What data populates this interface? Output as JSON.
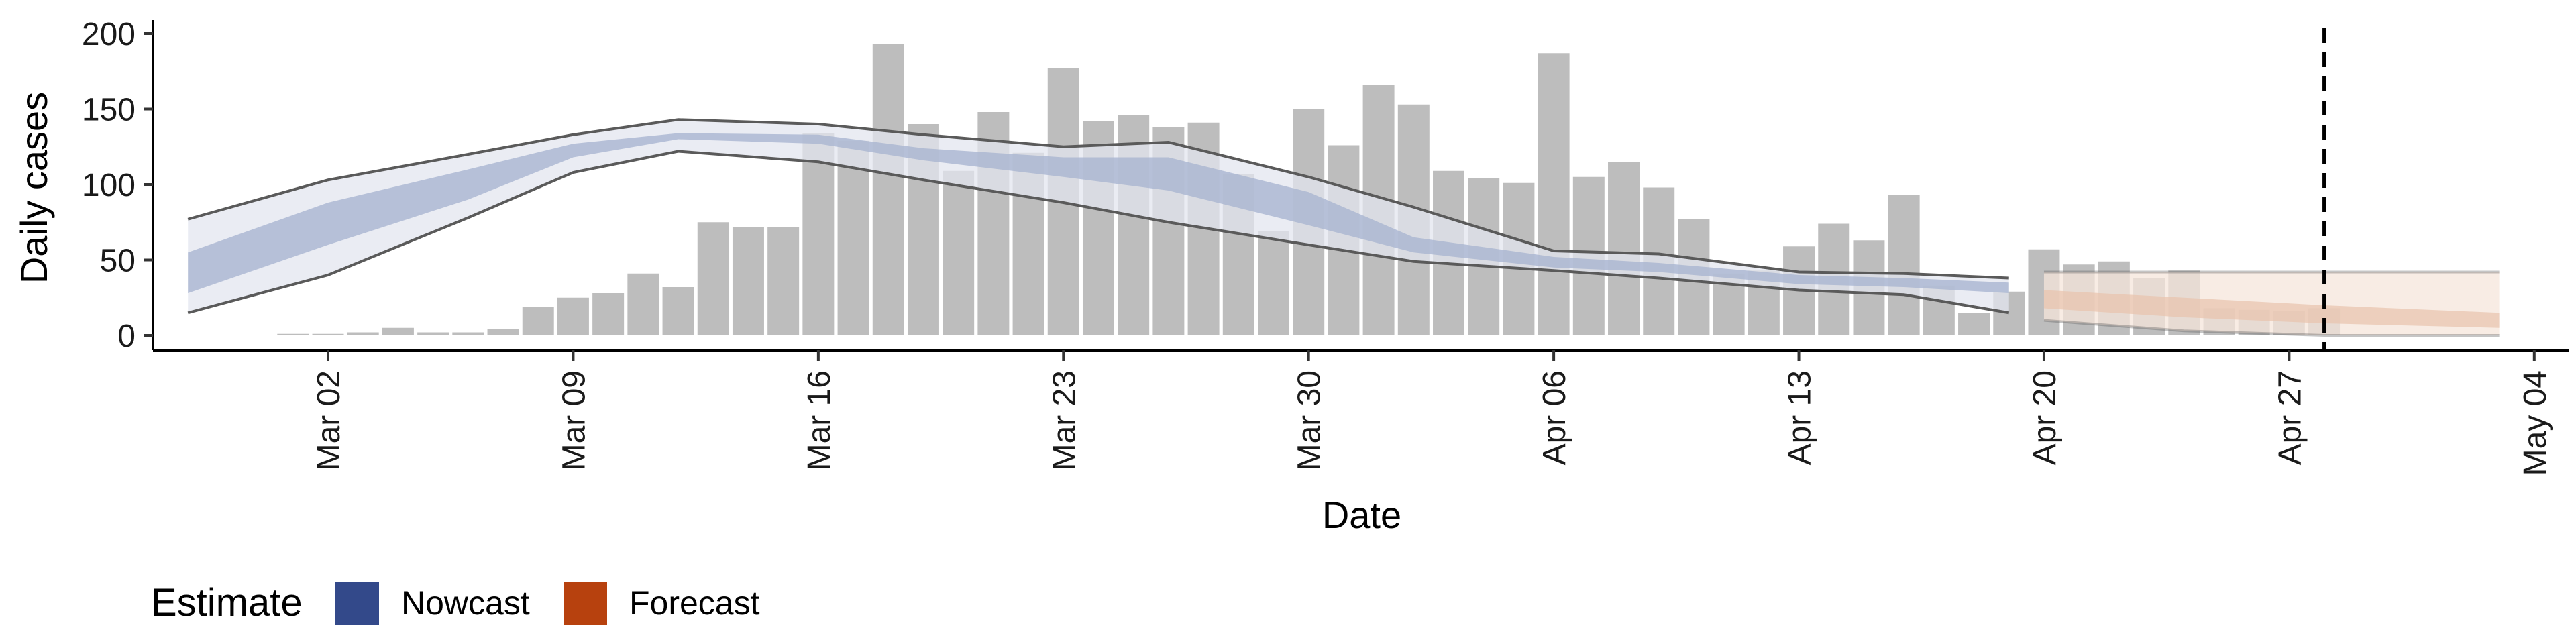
{
  "chart_data": {
    "type": "bar",
    "xlabel": "Date",
    "ylabel": "Daily cases",
    "ylim": [
      0,
      200
    ],
    "y_ticks": [
      0,
      50,
      100,
      150,
      200
    ],
    "xlim": [
      "2020-02-26",
      "2020-05-05"
    ],
    "x_ticks": [
      {
        "date": "2020-03-02",
        "label": "Mar 02"
      },
      {
        "date": "2020-03-09",
        "label": "Mar 09"
      },
      {
        "date": "2020-03-16",
        "label": "Mar 16"
      },
      {
        "date": "2020-03-23",
        "label": "Mar 23"
      },
      {
        "date": "2020-03-30",
        "label": "Mar 30"
      },
      {
        "date": "2020-04-06",
        "label": "Apr 06"
      },
      {
        "date": "2020-04-13",
        "label": "Apr 13"
      },
      {
        "date": "2020-04-20",
        "label": "Apr 20"
      },
      {
        "date": "2020-04-27",
        "label": "Apr 27"
      },
      {
        "date": "2020-05-04",
        "label": "May 04"
      }
    ],
    "forecast_date": "2020-04-28",
    "bars": {
      "dates": [
        "2020-03-01",
        "2020-03-02",
        "2020-03-03",
        "2020-03-04",
        "2020-03-05",
        "2020-03-06",
        "2020-03-07",
        "2020-03-08",
        "2020-03-09",
        "2020-03-10",
        "2020-03-11",
        "2020-03-12",
        "2020-03-13",
        "2020-03-14",
        "2020-03-15",
        "2020-03-16",
        "2020-03-17",
        "2020-03-18",
        "2020-03-19",
        "2020-03-20",
        "2020-03-21",
        "2020-03-22",
        "2020-03-23",
        "2020-03-24",
        "2020-03-25",
        "2020-03-26",
        "2020-03-27",
        "2020-03-28",
        "2020-03-29",
        "2020-03-30",
        "2020-03-31",
        "2020-04-01",
        "2020-04-02",
        "2020-04-03",
        "2020-04-04",
        "2020-04-05",
        "2020-04-06",
        "2020-04-07",
        "2020-04-08",
        "2020-04-09",
        "2020-04-10",
        "2020-04-11",
        "2020-04-12",
        "2020-04-13",
        "2020-04-14",
        "2020-04-15",
        "2020-04-16",
        "2020-04-17",
        "2020-04-18",
        "2020-04-19",
        "2020-04-20",
        "2020-04-21",
        "2020-04-22",
        "2020-04-23",
        "2020-04-24",
        "2020-04-25",
        "2020-04-26",
        "2020-04-27",
        "2020-04-28"
      ],
      "values": [
        1,
        1,
        2,
        5,
        2,
        2,
        4,
        19,
        25,
        28,
        41,
        32,
        75,
        72,
        72,
        134,
        129,
        193,
        140,
        109,
        148,
        121,
        177,
        142,
        146,
        138,
        141,
        107,
        69,
        150,
        126,
        166,
        153,
        109,
        104,
        101,
        187,
        105,
        115,
        98,
        77,
        41,
        43,
        59,
        74,
        63,
        93,
        33,
        15,
        29,
        57,
        47,
        49,
        38,
        43,
        18,
        17,
        16,
        18
      ]
    },
    "series": [
      {
        "name": "Nowcast",
        "x": [
          "2020-02-27",
          "2020-03-02",
          "2020-03-06",
          "2020-03-09",
          "2020-03-12",
          "2020-03-16",
          "2020-03-19",
          "2020-03-23",
          "2020-03-26",
          "2020-03-30",
          "2020-04-02",
          "2020-04-06",
          "2020-04-09",
          "2020-04-13",
          "2020-04-16",
          "2020-04-19"
        ],
        "outer_upper": [
          77,
          103,
          120,
          133,
          143,
          140,
          133,
          125,
          128,
          105,
          85,
          56,
          54,
          42,
          41,
          38
        ],
        "outer_lower": [
          15,
          40,
          78,
          108,
          122,
          115,
          103,
          88,
          75,
          60,
          49,
          43,
          38,
          30,
          27,
          15
        ],
        "inner_upper": [
          55,
          88,
          110,
          127,
          134,
          133,
          124,
          118,
          118,
          95,
          65,
          52,
          48,
          40,
          38,
          35
        ],
        "inner_lower": [
          28,
          60,
          90,
          118,
          130,
          127,
          116,
          105,
          96,
          73,
          55,
          45,
          42,
          34,
          32,
          28
        ]
      },
      {
        "name": "Forecast",
        "x": [
          "2020-04-20",
          "2020-04-24",
          "2020-04-28",
          "2020-05-03"
        ],
        "outer_upper": [
          42,
          42,
          42,
          42
        ],
        "outer_lower": [
          10,
          3,
          0,
          0
        ],
        "inner_upper": [
          30,
          25,
          20,
          15
        ],
        "inner_lower": [
          18,
          12,
          8,
          5
        ]
      }
    ],
    "legend": {
      "title": "Estimate",
      "position": "bottom-left",
      "items": [
        {
          "label": "Nowcast",
          "color": "#33498a"
        },
        {
          "label": "Forecast",
          "color": "#b7410e"
        }
      ]
    },
    "colors": {
      "bars": "#bdbdbd",
      "nowcast_inner": "#a9b5d1",
      "nowcast_outer": "#e3e6ef",
      "forecast_inner": "#e8c3ad",
      "forecast_outer": "#f6e5db",
      "bound_lines": "#5a5a5a"
    },
    "grid": false
  }
}
